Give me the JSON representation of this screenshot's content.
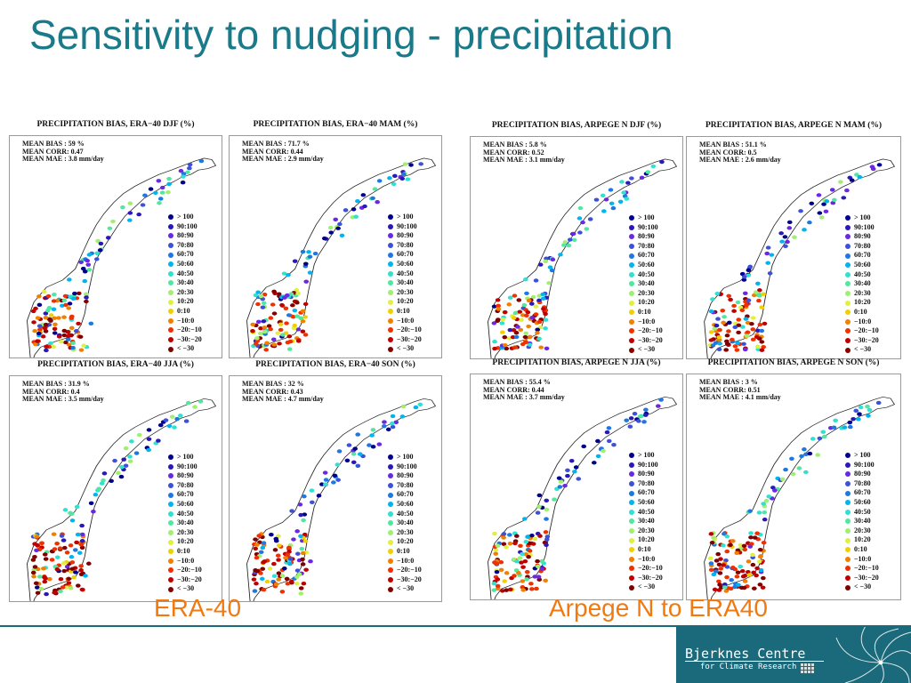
{
  "slide": {
    "title": "Sensitivity to nudging - precipitation",
    "caption_left": "ERA-40",
    "caption_right": "Arpege N to ERA40"
  },
  "legend": {
    "entries": [
      {
        "label": "> 100",
        "color": "#00008b"
      },
      {
        "label": "90:100",
        "color": "#2b18b8"
      },
      {
        "label": "80:90",
        "color": "#6a28e0"
      },
      {
        "label": "70:80",
        "color": "#3c50d8"
      },
      {
        "label": "60:70",
        "color": "#1e78e0"
      },
      {
        "label": "50:60",
        "color": "#00b4f0"
      },
      {
        "label": "40:50",
        "color": "#30e0d0"
      },
      {
        "label": "30:40",
        "color": "#50e8a0"
      },
      {
        "label": "20:30",
        "color": "#a0f070"
      },
      {
        "label": "10:20",
        "color": "#e0f040"
      },
      {
        "label": "0:10",
        "color": "#f0d000"
      },
      {
        "label": "−10:0",
        "color": "#f08000"
      },
      {
        "label": "−20:−10",
        "color": "#f03000"
      },
      {
        "label": "−30:−20",
        "color": "#c00000"
      },
      {
        "label": "< −30",
        "color": "#800000"
      }
    ]
  },
  "panels": [
    {
      "title": "PRECIPITATION BIAS, ERA−40 DJF (%)",
      "bias": "MEAN BIAS  :  59 %",
      "corr": "MEAN CORR: 0.47",
      "mae": "MEAN MAE  : 3.8 mm/day"
    },
    {
      "title": "PRECIPITATION BIAS, ERA−40 MAM (%)",
      "bias": "MEAN BIAS  :  71.7 %",
      "corr": "MEAN CORR: 0.44",
      "mae": "MEAN MAE  : 2.9 mm/day"
    },
    {
      "title": "PRECIPITATION BIAS, ARPEGE N DJF (%)",
      "bias": "MEAN BIAS  :  5.8 %",
      "corr": "MEAN CORR: 0.52",
      "mae": "MEAN MAE  : 3.1 mm/day"
    },
    {
      "title": "PRECIPITATION BIAS, ARPEGE N MAM (%)",
      "bias": "MEAN BIAS  :  51.1 %",
      "corr": "MEAN CORR: 0.5",
      "mae": "MEAN MAE  : 2.6 mm/day"
    },
    {
      "title": "PRECIPITATION BIAS, ERA−40 JJA (%)",
      "bias": "MEAN BIAS  :  31.9 %",
      "corr": "MEAN CORR: 0.4",
      "mae": "MEAN MAE  : 3.5 mm/day"
    },
    {
      "title": "PRECIPITATION BIAS, ERA−40 SON (%)",
      "bias": "MEAN BIAS  :  32 %",
      "corr": "MEAN CORR: 0.43",
      "mae": "MEAN MAE  : 4.7 mm/day"
    },
    {
      "title": "PRECIPITATION BIAS, ARPEGE N JJA (%)",
      "bias": "MEAN BIAS  :  55.4 %",
      "corr": "MEAN CORR: 0.44",
      "mae": "MEAN MAE  : 3.7 mm/day"
    },
    {
      "title": "PRECIPITATION BIAS, ARPEGE N SON (%)",
      "bias": "MEAN BIAS  :  3 %",
      "corr": "MEAN CORR: 0.51",
      "mae": "MEAN MAE  : 4.1 mm/day"
    }
  ],
  "logo": {
    "name": "Bjerknes Centre",
    "subtitle": "for Climate Research"
  }
}
